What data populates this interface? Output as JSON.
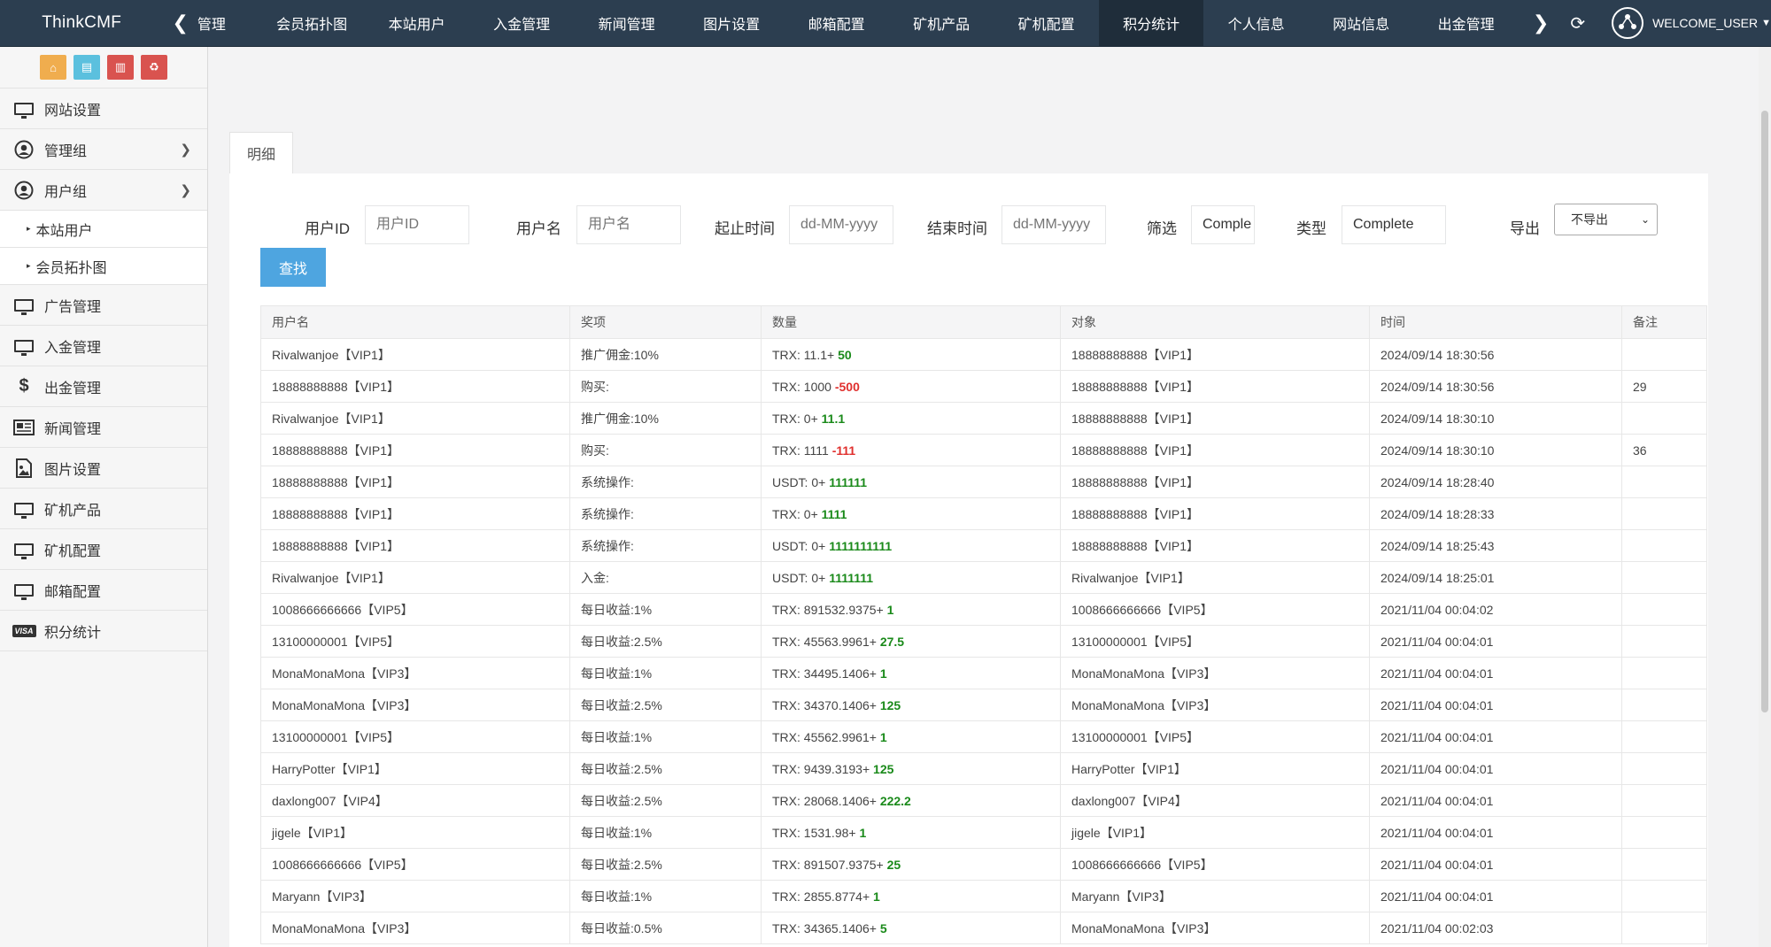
{
  "brand": "ThinkCMF",
  "nav": {
    "items": [
      {
        "label": "管理",
        "key": "manage"
      },
      {
        "label": "会员拓扑图",
        "key": "topology"
      },
      {
        "label": "本站用户",
        "key": "users"
      },
      {
        "label": "入金管理",
        "key": "deposit"
      },
      {
        "label": "新闻管理",
        "key": "news"
      },
      {
        "label": "图片设置",
        "key": "images"
      },
      {
        "label": "邮箱配置",
        "key": "mail"
      },
      {
        "label": "矿机产品",
        "key": "miner-products"
      },
      {
        "label": "矿机配置",
        "key": "miner-config"
      },
      {
        "label": "积分统计",
        "key": "points",
        "active": true
      },
      {
        "label": "个人信息",
        "key": "profile"
      },
      {
        "label": "网站信息",
        "key": "site-info"
      },
      {
        "label": "出金管理",
        "key": "withdraw"
      }
    ],
    "user": "WELCOME_USER"
  },
  "sidebar": {
    "quick_buttons": [
      {
        "icon": "home-icon",
        "color": "#f0ad4e"
      },
      {
        "icon": "file-icon",
        "color": "#5bc0de"
      },
      {
        "icon": "trash-icon",
        "color": "#d9534f"
      },
      {
        "icon": "recycle-icon",
        "color": "#d9534f"
      }
    ],
    "items": [
      {
        "label": "网站设置",
        "icon": "monitor-icon"
      },
      {
        "label": "管理组",
        "icon": "user-circle-icon",
        "has_children": true
      },
      {
        "label": "用户组",
        "icon": "user-circle-icon",
        "has_children": true,
        "expanded": true
      },
      {
        "label": "本站用户",
        "sub": true
      },
      {
        "label": "会员拓扑图",
        "sub": true
      },
      {
        "label": "广告管理",
        "icon": "monitor-icon"
      },
      {
        "label": "入金管理",
        "icon": "monitor-icon"
      },
      {
        "label": "出金管理",
        "icon": "dollar-icon"
      },
      {
        "label": "新闻管理",
        "icon": "newspaper-icon"
      },
      {
        "label": "图片设置",
        "icon": "image-icon"
      },
      {
        "label": "矿机产品",
        "icon": "monitor-icon"
      },
      {
        "label": "矿机配置",
        "icon": "monitor-icon"
      },
      {
        "label": "邮箱配置",
        "icon": "monitor-icon"
      },
      {
        "label": "积分统计",
        "icon": "visa-icon"
      }
    ]
  },
  "tab": {
    "label": "明细"
  },
  "filters": {
    "user_id_label": "用户ID",
    "user_id_placeholder": "用户ID",
    "username_label": "用户名",
    "username_placeholder": "用户名",
    "start_label": "起止时间",
    "start_placeholder": "dd-MM-yyyy",
    "end_label": "结束时间",
    "end_placeholder": "dd-MM-yyyy",
    "filter_label": "筛选",
    "filter_value": "Comple",
    "type_label": "类型",
    "type_value": "Complete",
    "export_label": "导出",
    "export_value": "不导出",
    "search_button": "查找"
  },
  "table": {
    "headers": [
      "用户名",
      "奖项",
      "数量",
      "对象",
      "时间",
      "备注"
    ],
    "rows": [
      {
        "user": "Rivalwanjoe【VIP1】",
        "award": "推广佣金:10%",
        "base": "TRX: 11.1+",
        "delta": "50",
        "sign": "pos",
        "target": "18888888888【VIP1】",
        "time": "2024/09/14 18:30:56",
        "note": ""
      },
      {
        "user": "18888888888【VIP1】",
        "award": "购买:",
        "base": "TRX: 1000",
        "delta": "-500",
        "sign": "neg",
        "target": "18888888888【VIP1】",
        "time": "2024/09/14 18:30:56",
        "note": "29"
      },
      {
        "user": "Rivalwanjoe【VIP1】",
        "award": "推广佣金:10%",
        "base": "TRX: 0+",
        "delta": "11.1",
        "sign": "pos",
        "target": "18888888888【VIP1】",
        "time": "2024/09/14 18:30:10",
        "note": ""
      },
      {
        "user": "18888888888【VIP1】",
        "award": "购买:",
        "base": "TRX: 1111",
        "delta": "-111",
        "sign": "neg",
        "target": "18888888888【VIP1】",
        "time": "2024/09/14 18:30:10",
        "note": "36"
      },
      {
        "user": "18888888888【VIP1】",
        "award": "系统操作:",
        "base": "USDT: 0+",
        "delta": "111111",
        "sign": "pos",
        "target": "18888888888【VIP1】",
        "time": "2024/09/14 18:28:40",
        "note": ""
      },
      {
        "user": "18888888888【VIP1】",
        "award": "系统操作:",
        "base": "TRX: 0+",
        "delta": "1111",
        "sign": "pos",
        "target": "18888888888【VIP1】",
        "time": "2024/09/14 18:28:33",
        "note": ""
      },
      {
        "user": "18888888888【VIP1】",
        "award": "系统操作:",
        "base": "USDT: 0+",
        "delta": "1111111111",
        "sign": "pos",
        "target": "18888888888【VIP1】",
        "time": "2024/09/14 18:25:43",
        "note": ""
      },
      {
        "user": "Rivalwanjoe【VIP1】",
        "award": "入金:",
        "base": "USDT: 0+",
        "delta": "1111111",
        "sign": "pos",
        "target": "Rivalwanjoe【VIP1】",
        "time": "2024/09/14 18:25:01",
        "note": ""
      },
      {
        "user": "1008666666666【VIP5】",
        "award": "每日收益:1%",
        "base": "TRX: 891532.9375+",
        "delta": "1",
        "sign": "pos",
        "target": "1008666666666【VIP5】",
        "time": "2021/11/04 00:04:02",
        "note": ""
      },
      {
        "user": "13100000001【VIP5】",
        "award": "每日收益:2.5%",
        "base": "TRX: 45563.9961+",
        "delta": "27.5",
        "sign": "pos",
        "target": "13100000001【VIP5】",
        "time": "2021/11/04 00:04:01",
        "note": ""
      },
      {
        "user": "MonaMonaMona【VIP3】",
        "award": "每日收益:1%",
        "base": "TRX: 34495.1406+",
        "delta": "1",
        "sign": "pos",
        "target": "MonaMonaMona【VIP3】",
        "time": "2021/11/04 00:04:01",
        "note": ""
      },
      {
        "user": "MonaMonaMona【VIP3】",
        "award": "每日收益:2.5%",
        "base": "TRX: 34370.1406+",
        "delta": "125",
        "sign": "pos",
        "target": "MonaMonaMona【VIP3】",
        "time": "2021/11/04 00:04:01",
        "note": ""
      },
      {
        "user": "13100000001【VIP5】",
        "award": "每日收益:1%",
        "base": "TRX: 45562.9961+",
        "delta": "1",
        "sign": "pos",
        "target": "13100000001【VIP5】",
        "time": "2021/11/04 00:04:01",
        "note": ""
      },
      {
        "user": "HarryPotter【VIP1】",
        "award": "每日收益:2.5%",
        "base": "TRX: 9439.3193+",
        "delta": "125",
        "sign": "pos",
        "target": "HarryPotter【VIP1】",
        "time": "2021/11/04 00:04:01",
        "note": ""
      },
      {
        "user": "daxlong007【VIP4】",
        "award": "每日收益:2.5%",
        "base": "TRX: 28068.1406+",
        "delta": "222.2",
        "sign": "pos",
        "target": "daxlong007【VIP4】",
        "time": "2021/11/04 00:04:01",
        "note": ""
      },
      {
        "user": "jigele【VIP1】",
        "award": "每日收益:1%",
        "base": "TRX: 1531.98+",
        "delta": "1",
        "sign": "pos",
        "target": "jigele【VIP1】",
        "time": "2021/11/04 00:04:01",
        "note": ""
      },
      {
        "user": "1008666666666【VIP5】",
        "award": "每日收益:2.5%",
        "base": "TRX: 891507.9375+",
        "delta": "25",
        "sign": "pos",
        "target": "1008666666666【VIP5】",
        "time": "2021/11/04 00:04:01",
        "note": ""
      },
      {
        "user": "Maryann【VIP3】",
        "award": "每日收益:1%",
        "base": "TRX: 2855.8774+",
        "delta": "1",
        "sign": "pos",
        "target": "Maryann【VIP3】",
        "time": "2021/11/04 00:04:01",
        "note": ""
      },
      {
        "user": "MonaMonaMona【VIP3】",
        "award": "每日收益:0.5%",
        "base": "TRX: 34365.1406+",
        "delta": "5",
        "sign": "pos",
        "target": "MonaMonaMona【VIP3】",
        "time": "2021/11/04 00:02:03",
        "note": ""
      }
    ]
  }
}
